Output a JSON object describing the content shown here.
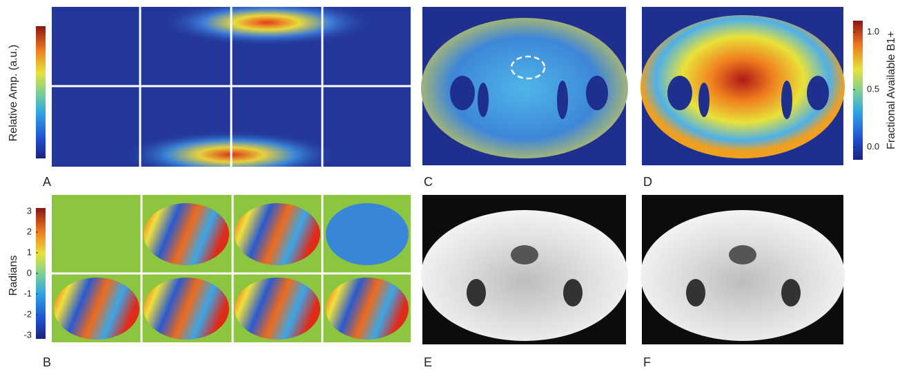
{
  "panels": [
    {
      "label": "A"
    },
    {
      "label": "B"
    },
    {
      "label": "C"
    },
    {
      "label": "D"
    },
    {
      "label": "E"
    },
    {
      "label": "F"
    }
  ],
  "colorbars": [
    {
      "label": "Relative Amp. (a.u.)"
    },
    {
      "label": "Radians",
      "lim": [
        -3.17,
        3.17
      ],
      "ticks": [
        3,
        2,
        1,
        0,
        -1,
        -2,
        -3
      ]
    },
    {
      "label": "Fractional Available B1+",
      "lim": [
        -0.11,
        1.1
      ],
      "ticks": [
        {
          "value": 1,
          "label": "1.0"
        },
        {
          "value": 0.5,
          "label": "0.5"
        },
        {
          "value": 0,
          "label": "0.0"
        }
      ]
    }
  ]
}
